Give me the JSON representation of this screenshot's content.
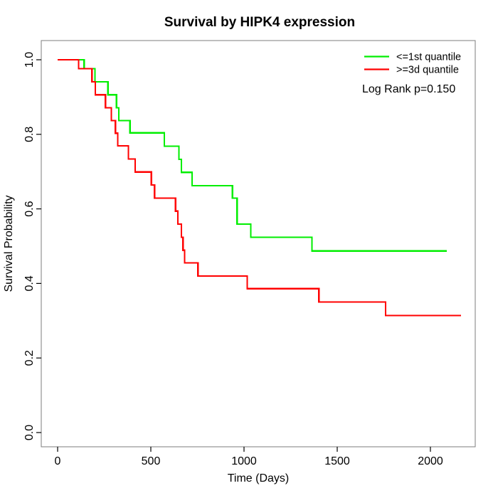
{
  "title": "Survival by HIPK4 expression",
  "axes": {
    "x": {
      "label": "Time (Days)",
      "tick_labels": [
        "0",
        "500",
        "1000",
        "1500",
        "2000"
      ]
    },
    "y": {
      "label": "Survival Probability",
      "tick_labels": [
        "0.0",
        "0.2",
        "0.4",
        "0.6",
        "0.8",
        "1.0"
      ]
    }
  },
  "legend": {
    "items": [
      {
        "label": "<=1st quantile",
        "color": "#00ee00"
      },
      {
        "label": ">=3d quantile",
        "color": "#ff0000"
      }
    ],
    "annotation": "Log Rank p=0.150"
  },
  "chart_data": {
    "type": "line",
    "subtype": "kaplan-meier-step",
    "title": "Survival by HIPK4 expression",
    "xlabel": "Time (Days)",
    "ylabel": "Survival Probability",
    "xlim": [
      0,
      2250
    ],
    "ylim": [
      0,
      1.04
    ],
    "x_ticks": [
      0,
      500,
      1000,
      1500,
      2000
    ],
    "y_ticks": [
      0.0,
      0.2,
      0.4,
      0.6,
      0.8,
      1.0
    ],
    "grid": false,
    "legend_position": "top-right-inside",
    "annotation": "Log Rank p=0.150",
    "series": [
      {
        "name": "<=1st quantile",
        "color": "#00ee00",
        "start_prob": 1.0,
        "steps": [
          [
            142,
            0.976
          ],
          [
            200,
            0.941
          ],
          [
            270,
            0.906
          ],
          [
            316,
            0.871
          ],
          [
            328,
            0.837
          ],
          [
            388,
            0.804
          ],
          [
            572,
            0.768
          ],
          [
            651,
            0.733
          ],
          [
            664,
            0.698
          ],
          [
            721,
            0.662
          ],
          [
            938,
            0.629
          ],
          [
            963,
            0.559
          ],
          [
            1036,
            0.524
          ],
          [
            1364,
            0.487
          ]
        ],
        "end_time": 2087
      },
      {
        "name": ">=3d quantile",
        "color": "#ff0000",
        "start_prob": 1.0,
        "steps": [
          [
            113,
            0.976
          ],
          [
            184,
            0.941
          ],
          [
            202,
            0.906
          ],
          [
            257,
            0.871
          ],
          [
            288,
            0.837
          ],
          [
            310,
            0.803
          ],
          [
            322,
            0.769
          ],
          [
            380,
            0.734
          ],
          [
            416,
            0.699
          ],
          [
            503,
            0.664
          ],
          [
            520,
            0.629
          ],
          [
            633,
            0.594
          ],
          [
            645,
            0.559
          ],
          [
            664,
            0.524
          ],
          [
            673,
            0.489
          ],
          [
            681,
            0.455
          ],
          [
            753,
            0.42
          ],
          [
            1017,
            0.386
          ],
          [
            1402,
            0.35
          ],
          [
            1759,
            0.314
          ]
        ],
        "end_time": 2164
      }
    ]
  }
}
